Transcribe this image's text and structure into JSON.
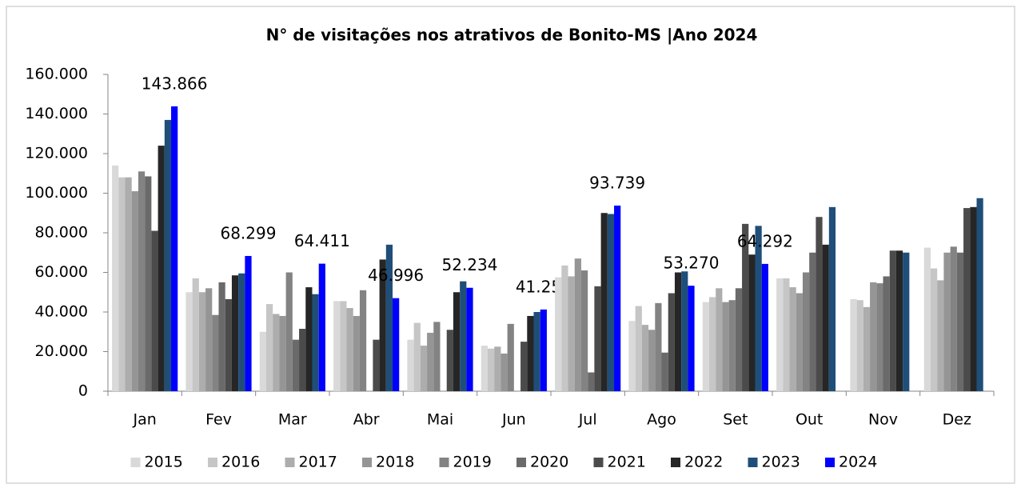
{
  "chart_data": {
    "type": "bar",
    "title": "N° de visitações nos atrativos de Bonito-MS |Ano 2024",
    "categories": [
      "Jan",
      "Fev",
      "Mar",
      "Abr",
      "Mai",
      "Jun",
      "Jul",
      "Ago",
      "Set",
      "Out",
      "Nov",
      "Dez"
    ],
    "series": [
      {
        "name": "2015",
        "color": "#d9d9d9",
        "values": [
          114000,
          50000,
          30000,
          45500,
          26000,
          23000,
          57500,
          35500,
          45000,
          57000,
          46500,
          72500
        ]
      },
      {
        "name": "2016",
        "color": "#c6c6c6",
        "values": [
          108000,
          57000,
          44000,
          45500,
          34500,
          21500,
          63500,
          43000,
          47500,
          57000,
          46000,
          62000
        ]
      },
      {
        "name": "2017",
        "color": "#adadad",
        "values": [
          108000,
          50000,
          39000,
          42000,
          23000,
          22500,
          58000,
          33500,
          52000,
          52500,
          42500,
          56000
        ]
      },
      {
        "name": "2018",
        "color": "#959595",
        "values": [
          101000,
          52000,
          38000,
          38000,
          29500,
          19000,
          67000,
          31000,
          45000,
          49500,
          55000,
          70000
        ]
      },
      {
        "name": "2019",
        "color": "#838383",
        "values": [
          111000,
          38500,
          60000,
          51000,
          35000,
          34000,
          61000,
          44500,
          46000,
          60000,
          54500,
          73000
        ]
      },
      {
        "name": "2020",
        "color": "#6a6a6a",
        "values": [
          108500,
          55000,
          26000,
          null,
          null,
          null,
          9500,
          19500,
          52000,
          70000,
          58000,
          70000
        ]
      },
      {
        "name": "2021",
        "color": "#4b4b4b",
        "values": [
          81000,
          46500,
          31500,
          26000,
          31000,
          25000,
          53000,
          49500,
          84500,
          88000,
          71000,
          92500
        ]
      },
      {
        "name": "2022",
        "color": "#262626",
        "values": [
          124000,
          58500,
          52500,
          66500,
          50000,
          38000,
          90000,
          60000,
          69000,
          74000,
          71000,
          93000
        ]
      },
      {
        "name": "2023",
        "color": "#1f4e79",
        "values": [
          137000,
          59500,
          49000,
          74000,
          55500,
          40000,
          89500,
          60500,
          83500,
          93000,
          70000,
          97500
        ]
      },
      {
        "name": "2024",
        "color": "#0000ff",
        "values": [
          143866,
          68299,
          64411,
          46996,
          52234,
          41259,
          93739,
          53270,
          64292,
          null,
          null,
          null
        ],
        "value_labels": [
          "143.866",
          "68.299",
          "64.411",
          "46.996",
          "52.234",
          "41.259",
          "93.739",
          "53.270",
          "64.292",
          null,
          null,
          null
        ]
      }
    ],
    "ylim": [
      0,
      160000
    ],
    "yticks": [
      0,
      {
        "value": 20000,
        "label": "20.000"
      },
      {
        "value": 40000,
        "label": "40.000"
      },
      {
        "value": 60000,
        "label": "60.000"
      },
      {
        "value": 80000,
        "label": "80.000"
      },
      {
        "value": 100000,
        "label": "100.000"
      },
      {
        "value": 120000,
        "label": "120.000"
      },
      {
        "value": 140000,
        "label": "140.000"
      },
      {
        "value": 160000,
        "label": "160.000"
      }
    ],
    "legend": "bottom"
  }
}
